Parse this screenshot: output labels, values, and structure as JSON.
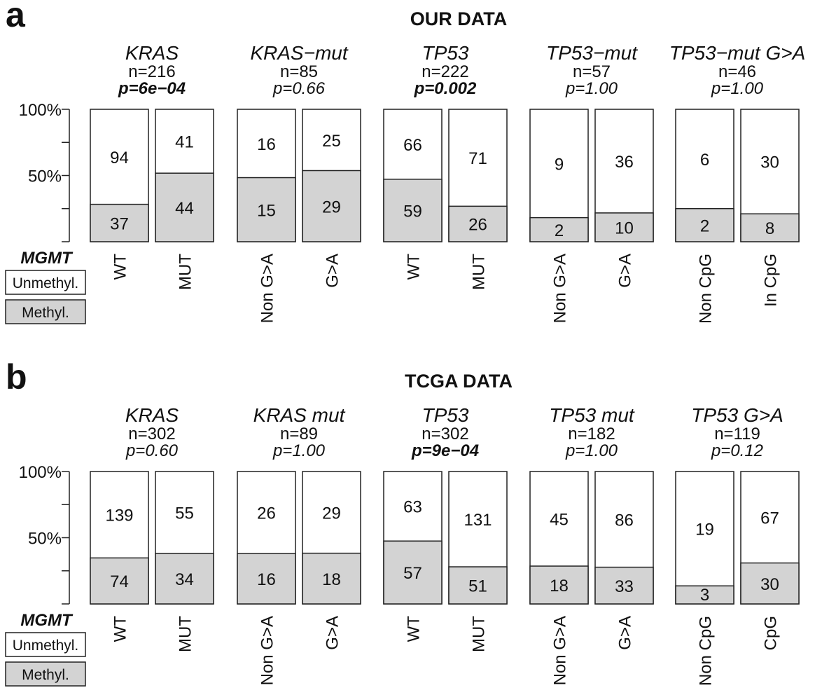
{
  "chart_data": [
    {
      "panel_letter": "a",
      "title": "OUR DATA",
      "type": "bar",
      "stacked": "percent",
      "ylim": [
        0,
        100
      ],
      "yticks": [
        100,
        50
      ],
      "ytick_labels": [
        "100%",
        "50%"
      ],
      "legend_title": "MGMT",
      "legend_entries": [
        {
          "label": "Unmethyl.",
          "color": "#ffffff"
        },
        {
          "label": "Methyl.",
          "color": "#d3d3d3"
        }
      ],
      "groups": [
        {
          "gene": "KRAS",
          "n": "n=216",
          "p": "p=6e−04",
          "p_bold": true,
          "categories": [
            "WT",
            "MUT"
          ],
          "unmethyl": [
            94,
            41
          ],
          "methyl": [
            37,
            44
          ]
        },
        {
          "gene": "KRAS−mut",
          "n": "n=85",
          "p": "p=0.66",
          "p_bold": false,
          "categories": [
            "Non G>A",
            "G>A"
          ],
          "unmethyl": [
            16,
            25
          ],
          "methyl": [
            15,
            29
          ]
        },
        {
          "gene": "TP53",
          "n": "n=222",
          "p": "p=0.002",
          "p_bold": true,
          "categories": [
            "WT",
            "MUT"
          ],
          "unmethyl": [
            66,
            71
          ],
          "methyl": [
            59,
            26
          ]
        },
        {
          "gene": "TP53−mut",
          "n": "n=57",
          "p": "p=1.00",
          "p_bold": false,
          "categories": [
            "Non G>A",
            "G>A"
          ],
          "unmethyl": [
            9,
            36
          ],
          "methyl": [
            2,
            10
          ]
        },
        {
          "gene": "TP53−mut G>A",
          "n": "n=46",
          "p": "p=1.00",
          "p_bold": false,
          "categories": [
            "Non CpG",
            "In CpG"
          ],
          "unmethyl": [
            6,
            30
          ],
          "methyl": [
            2,
            8
          ]
        }
      ]
    },
    {
      "panel_letter": "b",
      "title": "TCGA DATA",
      "type": "bar",
      "stacked": "percent",
      "ylim": [
        0,
        100
      ],
      "yticks": [
        100,
        50
      ],
      "ytick_labels": [
        "100%",
        "50%"
      ],
      "legend_title": "MGMT",
      "legend_entries": [
        {
          "label": "Unmethyl.",
          "color": "#ffffff"
        },
        {
          "label": "Methyl.",
          "color": "#d3d3d3"
        }
      ],
      "groups": [
        {
          "gene": "KRAS",
          "n": "n=302",
          "p": "p=0.60",
          "p_bold": false,
          "categories": [
            "WT",
            "MUT"
          ],
          "unmethyl": [
            139,
            55
          ],
          "methyl": [
            74,
            34
          ]
        },
        {
          "gene": "KRAS mut",
          "n": "n=89",
          "p": "p=1.00",
          "p_bold": false,
          "categories": [
            "Non G>A",
            "G>A"
          ],
          "unmethyl": [
            26,
            29
          ],
          "methyl": [
            16,
            18
          ]
        },
        {
          "gene": "TP53",
          "n": "n=302",
          "p": "p=9e−04",
          "p_bold": true,
          "categories": [
            "WT",
            "MUT"
          ],
          "unmethyl": [
            63,
            131
          ],
          "methyl": [
            57,
            51
          ]
        },
        {
          "gene": "TP53 mut",
          "n": "n=182",
          "p": "p=1.00",
          "p_bold": false,
          "categories": [
            "Non G>A",
            "G>A"
          ],
          "unmethyl": [
            45,
            86
          ],
          "methyl": [
            18,
            33
          ]
        },
        {
          "gene": "TP53 G>A",
          "n": "n=119",
          "p": "p=0.12",
          "p_bold": false,
          "categories": [
            "Non CpG",
            "CpG"
          ],
          "unmethyl": [
            19,
            67
          ],
          "methyl": [
            3,
            30
          ]
        }
      ]
    }
  ]
}
